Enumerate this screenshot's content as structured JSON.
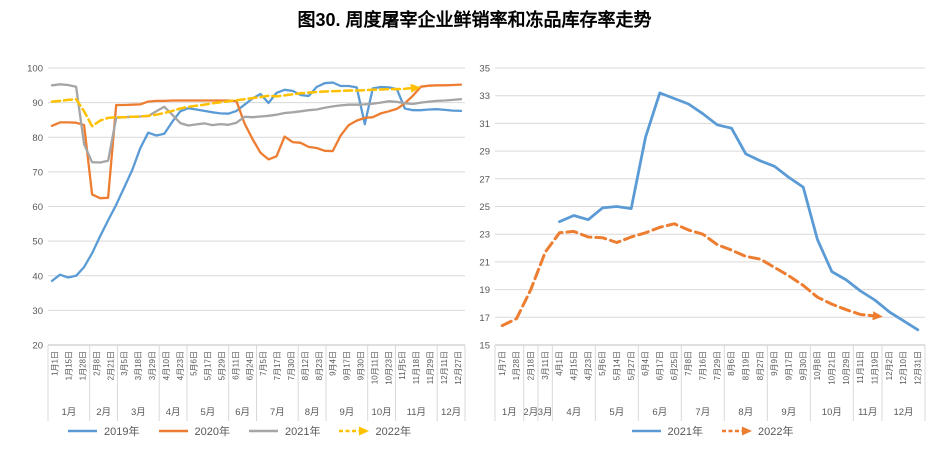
{
  "title": "图30. 周度屠宰企业鲜销率和冻品库存率走势",
  "colors": {
    "blue": "#5B9BD5",
    "orange": "#ED7D31",
    "gray": "#A5A5A5",
    "yellow": "#FFC000",
    "grid": "#D9D9D9",
    "axis": "#BFBFBF",
    "text": "#595959",
    "title_text": "#000000"
  },
  "chart_data": [
    {
      "type": "line",
      "position": "left",
      "title": "",
      "xlabel": "",
      "ylabel": "",
      "ylim": [
        20,
        100
      ],
      "ytick_step": 10,
      "grid": true,
      "legend_position": "bottom",
      "categories": [
        "1月1日",
        "1月15日",
        "1月28日",
        "2月8日",
        "2月21日",
        "3月5日",
        "3月18日",
        "3月29日",
        "4月10日",
        "4月23日",
        "5月6日",
        "5月17日",
        "5月29日",
        "6月11日",
        "6月24日",
        "7月5日",
        "7月17日",
        "7月30日",
        "8月12日",
        "8月23日",
        "9月4日",
        "9月17日",
        "9月30日",
        "10月11日",
        "10月23日",
        "11月5日",
        "11月18日",
        "11月29日",
        "12月11日",
        "12月27日"
      ],
      "months": [
        {
          "label": "1月",
          "span": 3
        },
        {
          "label": "2月",
          "span": 2
        },
        {
          "label": "3月",
          "span": 3
        },
        {
          "label": "4月",
          "span": 2
        },
        {
          "label": "5月",
          "span": 3
        },
        {
          "label": "6月",
          "span": 2
        },
        {
          "label": "7月",
          "span": 3
        },
        {
          "label": "8月",
          "span": 2
        },
        {
          "label": "9月",
          "span": 3
        },
        {
          "label": "10月",
          "span": 2
        },
        {
          "label": "11月",
          "span": 3
        },
        {
          "label": "12月",
          "span": 2
        }
      ],
      "series": [
        {
          "name": "2019年",
          "color": "#5B9BD5",
          "dashed": false,
          "dash": "",
          "width": 2.3,
          "arrow_end": false,
          "values": [
            38.5,
            40.3,
            39.5,
            40,
            42.5,
            46.5,
            51.4,
            56,
            60.5,
            65.5,
            70.5,
            76.8,
            81.3,
            80.5,
            81,
            84.5,
            87.5,
            88.4,
            88,
            87.6,
            87.2,
            86.9,
            86.8,
            87.6,
            89.4,
            91.2,
            92.5,
            89.9,
            92.8,
            93.7,
            93.4,
            92.2,
            91.9,
            94.5,
            95.6,
            95.8,
            94.8,
            94.8,
            94.4,
            83.8,
            94.1,
            94.5,
            94.4,
            93.9,
            88.3,
            87.8,
            87.8,
            88,
            88.1,
            87.9,
            87.7,
            87.6
          ]
        },
        {
          "name": "2020年",
          "color": "#ED7D31",
          "dashed": false,
          "dash": "",
          "width": 2.3,
          "arrow_end": false,
          "values": [
            83.3,
            84.3,
            84.3,
            84.2,
            83.5,
            63.5,
            62.4,
            62.5,
            89.3,
            89.3,
            89.4,
            89.5,
            90.3,
            90.5,
            90.5,
            90.6,
            90.6,
            90.6,
            90.6,
            90.6,
            90.6,
            90.6,
            90.6,
            90.4,
            84,
            79.5,
            75.5,
            73.6,
            74.5,
            80.2,
            78.6,
            78.4,
            77.2,
            76.9,
            76.1,
            76,
            80.5,
            83.5,
            84.8,
            85.6,
            85.8,
            86.9,
            87.5,
            88.2,
            89.8,
            92,
            94.6,
            94.9,
            95,
            95,
            95.1,
            95.2
          ]
        },
        {
          "name": "2021年",
          "color": "#A5A5A5",
          "dashed": false,
          "dash": "",
          "width": 2.3,
          "arrow_end": false,
          "values": [
            95,
            95.3,
            95.1,
            94.6,
            78,
            72.8,
            72.7,
            73.2,
            85.6,
            85.8,
            85.9,
            86,
            86.1,
            87.5,
            88.8,
            86.5,
            84.1,
            83.4,
            83.7,
            84,
            83.5,
            83.8,
            83.6,
            84.2,
            85.9,
            85.8,
            86,
            86.2,
            86.5,
            87,
            87.2,
            87.5,
            87.8,
            88,
            88.5,
            88.9,
            89.2,
            89.4,
            89.4,
            89.5,
            89.7,
            90,
            90.4,
            90.2,
            89.8,
            89.6,
            90,
            90.3,
            90.5,
            90.6,
            90.8,
            91
          ]
        },
        {
          "name": "2022年",
          "color": "#FFC000",
          "dashed": true,
          "dash": "8 4",
          "width": 2.5,
          "arrow_end": true,
          "values": [
            90.3,
            90.5,
            90.8,
            91,
            87.5,
            83.2,
            84.8,
            85.6,
            85.8,
            85.8,
            85.9,
            86,
            86.2,
            86.5,
            87,
            87.6,
            88.3,
            88.8,
            89.1,
            89.4,
            89.8,
            90.1,
            90.4,
            90.7,
            91,
            91.3,
            91.6,
            92,
            91.8,
            92.1,
            92.4,
            92.7,
            92.9,
            93.1,
            93.2,
            93.3,
            93.4,
            93.5,
            93.5,
            93.6,
            93.7,
            93.8,
            93.9,
            93.9,
            94,
            94.2,
            null,
            null,
            null,
            null,
            null,
            null
          ]
        }
      ]
    },
    {
      "type": "line",
      "position": "right",
      "title": "",
      "xlabel": "",
      "ylabel": "",
      "ylim": [
        15,
        35
      ],
      "ytick_step": 2,
      "grid": true,
      "legend_position": "bottom",
      "categories": [
        "1月7日",
        "1月28日",
        "2月18日",
        "3月11日",
        "4月1日",
        "4月15日",
        "4月23日",
        "5月6日",
        "5月14日",
        "5月27日",
        "6月4日",
        "6月17日",
        "6月25日",
        "7月8日",
        "7月16日",
        "7月29日",
        "8月6日",
        "8月19日",
        "8月27日",
        "9月9日",
        "9月17日",
        "9月30日",
        "10月8日",
        "10月21日",
        "10月29日",
        "11月11日",
        "11月19日",
        "12月2日",
        "12月10日",
        "12月31日"
      ],
      "months": [
        {
          "label": "1月",
          "span": 2
        },
        {
          "label": "2月",
          "span": 1
        },
        {
          "label": "3月",
          "span": 1
        },
        {
          "label": "4月",
          "span": 3
        },
        {
          "label": "5月",
          "span": 3
        },
        {
          "label": "6月",
          "span": 3
        },
        {
          "label": "7月",
          "span": 3
        },
        {
          "label": "8月",
          "span": 3
        },
        {
          "label": "9月",
          "span": 3
        },
        {
          "label": "10月",
          "span": 3
        },
        {
          "label": "11月",
          "span": 2
        },
        {
          "label": "12月",
          "span": 3
        }
      ],
      "series": [
        {
          "name": "2021年",
          "color": "#5B9BD5",
          "dashed": false,
          "dash": "",
          "width": 2.8,
          "arrow_end": false,
          "values": [
            null,
            null,
            null,
            null,
            23.9,
            24.35,
            24.05,
            24.9,
            25,
            24.85,
            30,
            33.2,
            32.8,
            32.4,
            31.7,
            30.9,
            30.65,
            28.8,
            28.3,
            27.9,
            27.1,
            26.4,
            22.6,
            20.3,
            19.7,
            18.9,
            18.25,
            17.4,
            16.75,
            16.1
          ]
        },
        {
          "name": "2022年",
          "color": "#ED7D31",
          "dashed": true,
          "dash": "10 5",
          "width": 3,
          "arrow_end": true,
          "values": [
            16.4,
            16.9,
            19,
            21.7,
            23.1,
            23.2,
            22.8,
            22.75,
            22.4,
            22.8,
            23.1,
            23.5,
            23.75,
            23.3,
            23,
            22.25,
            21.85,
            21.4,
            21.2,
            20.6,
            20,
            19.3,
            18.45,
            17.95,
            17.55,
            17.2,
            17.1,
            null,
            null,
            null
          ]
        }
      ]
    }
  ]
}
